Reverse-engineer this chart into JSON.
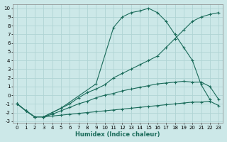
{
  "xlabel": "Humidex (Indice chaleur)",
  "xlim": [
    -0.5,
    23.5
  ],
  "ylim": [
    -3.2,
    10.5
  ],
  "background_color": "#cce8e8",
  "grid_color": "#b0d4d4",
  "line_color": "#1a6b5a",
  "line1_x": [
    0,
    1,
    2,
    3,
    4,
    5,
    6,
    7,
    8,
    9,
    10,
    11,
    12,
    13,
    14,
    15,
    16,
    17,
    18,
    19,
    20,
    21,
    22,
    23
  ],
  "line1_y": [
    -1.0,
    -1.8,
    -2.5,
    -2.5,
    -2.4,
    -2.3,
    -2.2,
    -2.1,
    -2.0,
    -1.9,
    -1.8,
    -1.7,
    -1.6,
    -1.5,
    -1.4,
    -1.3,
    -1.2,
    -1.1,
    -1.0,
    -0.9,
    -0.8,
    -0.8,
    -0.7,
    -1.2
  ],
  "line2_x": [
    0,
    1,
    2,
    3,
    4,
    5,
    6,
    7,
    8,
    9,
    10,
    11,
    12,
    13,
    14,
    15,
    16,
    17,
    18,
    19,
    20,
    21,
    22,
    23
  ],
  "line2_y": [
    -1.0,
    -1.8,
    -2.5,
    -2.5,
    -2.2,
    -1.8,
    -1.4,
    -1.0,
    -0.7,
    -0.3,
    0.0,
    0.2,
    0.5,
    0.7,
    0.9,
    1.1,
    1.3,
    1.4,
    1.5,
    1.6,
    1.5,
    1.5,
    1.0,
    -0.5
  ],
  "line3_x": [
    0,
    1,
    2,
    3,
    4,
    5,
    6,
    7,
    8,
    9,
    10,
    11,
    12,
    13,
    14,
    15,
    16,
    17,
    18,
    19,
    20,
    21,
    22,
    23
  ],
  "line3_y": [
    -1.0,
    -1.8,
    -2.5,
    -2.5,
    -2.0,
    -1.5,
    -1.0,
    -0.3,
    0.3,
    0.7,
    1.2,
    2.0,
    2.5,
    3.0,
    3.5,
    4.0,
    4.5,
    5.5,
    6.5,
    7.5,
    8.5,
    9.0,
    9.3,
    9.5
  ],
  "line4_x": [
    0,
    1,
    2,
    3,
    4,
    5,
    9,
    11,
    12,
    13,
    14,
    15,
    16,
    17,
    18,
    19,
    20,
    21,
    22
  ],
  "line4_y": [
    -1.0,
    -1.8,
    -2.5,
    -2.5,
    -2.0,
    -1.5,
    1.3,
    7.8,
    9.0,
    9.5,
    9.7,
    10.0,
    9.5,
    8.5,
    7.0,
    5.5,
    4.0,
    1.2,
    -0.5
  ],
  "yticks": [
    -3,
    -2,
    -1,
    0,
    1,
    2,
    3,
    4,
    5,
    6,
    7,
    8,
    9,
    10
  ],
  "xticks": [
    0,
    1,
    2,
    3,
    4,
    5,
    6,
    7,
    8,
    9,
    10,
    11,
    12,
    13,
    14,
    15,
    16,
    17,
    18,
    19,
    20,
    21,
    22,
    23
  ],
  "tick_fontsize": 5,
  "xlabel_fontsize": 6
}
